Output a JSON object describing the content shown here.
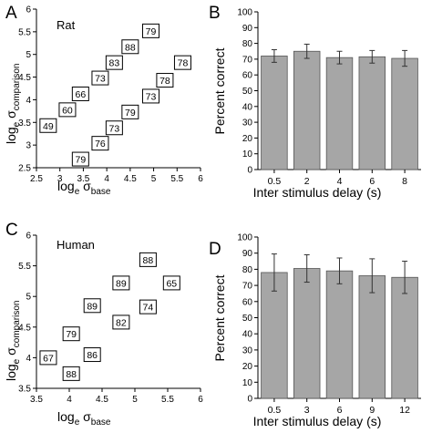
{
  "chart_data": [
    {
      "panel": "A",
      "type": "scatter",
      "inset_label": "Rat",
      "xlabel": "log",
      "xlabel_sub": "e",
      "xlabel_sigma": "σ",
      "xlabel_sigma_sub": "base",
      "ylabel": "log",
      "ylabel_sub": "e",
      "ylabel_sigma": "σ",
      "ylabel_sigma_sub": "comparison",
      "xlim": [
        2.5,
        6
      ],
      "ylim": [
        2.5,
        6
      ],
      "xticks": [
        "2.5",
        "3",
        "3.5",
        "4",
        "4.5",
        "5",
        "5.5",
        "6"
      ],
      "yticks": [
        "2.5",
        "3",
        "3.5",
        "4",
        "4.5",
        "5",
        "5.5",
        "6"
      ],
      "points": [
        {
          "x": 2.75,
          "y": 3.43,
          "label": "49"
        },
        {
          "x": 3.16,
          "y": 3.78,
          "label": "60"
        },
        {
          "x": 3.44,
          "y": 2.69,
          "label": "79"
        },
        {
          "x": 3.44,
          "y": 4.13,
          "label": "66"
        },
        {
          "x": 3.86,
          "y": 3.04,
          "label": "76"
        },
        {
          "x": 3.86,
          "y": 4.48,
          "label": "73"
        },
        {
          "x": 4.16,
          "y": 3.38,
          "label": "73"
        },
        {
          "x": 4.16,
          "y": 4.82,
          "label": "83"
        },
        {
          "x": 4.5,
          "y": 3.73,
          "label": "79"
        },
        {
          "x": 4.5,
          "y": 5.17,
          "label": "88"
        },
        {
          "x": 4.94,
          "y": 4.08,
          "label": "73"
        },
        {
          "x": 4.94,
          "y": 5.52,
          "label": "79"
        },
        {
          "x": 5.24,
          "y": 4.43,
          "label": "78"
        },
        {
          "x": 5.62,
          "y": 4.82,
          "label": "78"
        }
      ]
    },
    {
      "panel": "B",
      "type": "bar",
      "xlabel": "Inter stimulus delay (s)",
      "ylabel": "Percent correct",
      "categories": [
        "0.5",
        "2",
        "4",
        "6",
        "8"
      ],
      "values": [
        72,
        75,
        71,
        71.5,
        70.5
      ],
      "errors": [
        4,
        4.5,
        4,
        4,
        5
      ],
      "ylim": [
        0,
        100
      ],
      "yticks": [
        "0",
        "10",
        "20",
        "30",
        "40",
        "50",
        "60",
        "70",
        "80",
        "90",
        "100"
      ],
      "bar_color": "#a6a6a6"
    },
    {
      "panel": "C",
      "type": "scatter",
      "inset_label": "Human",
      "xlabel": "log",
      "xlabel_sub": "e",
      "xlabel_sigma": "σ",
      "xlabel_sigma_sub": "base",
      "ylabel": "log",
      "ylabel_sub": "e",
      "ylabel_sigma": "σ",
      "ylabel_sigma_sub": "comparison",
      "xlim": [
        3.5,
        6
      ],
      "ylim": [
        3.5,
        6
      ],
      "xticks": [
        "3.5",
        "4",
        "4.5",
        "5",
        "5.5",
        "6"
      ],
      "yticks": [
        "3.5",
        "4",
        "4.5",
        "5",
        "5.5",
        "6"
      ],
      "points": [
        {
          "x": 3.68,
          "y": 4.0,
          "label": "67"
        },
        {
          "x": 4.03,
          "y": 3.74,
          "label": "88"
        },
        {
          "x": 4.03,
          "y": 4.39,
          "label": "79"
        },
        {
          "x": 4.35,
          "y": 4.05,
          "label": "86"
        },
        {
          "x": 4.35,
          "y": 4.85,
          "label": "89"
        },
        {
          "x": 4.79,
          "y": 4.58,
          "label": "82"
        },
        {
          "x": 4.79,
          "y": 5.22,
          "label": "89"
        },
        {
          "x": 5.2,
          "y": 4.83,
          "label": "74"
        },
        {
          "x": 5.2,
          "y": 5.6,
          "label": "88"
        },
        {
          "x": 5.56,
          "y": 5.22,
          "label": "65"
        }
      ]
    },
    {
      "panel": "D",
      "type": "bar",
      "xlabel": "Inter stimulus delay (s)",
      "ylabel": "Percent correct",
      "categories": [
        "0.5",
        "3",
        "6",
        "9",
        "12"
      ],
      "values": [
        78,
        80.5,
        79,
        76,
        75
      ],
      "errors": [
        11.5,
        8.5,
        8,
        10.5,
        10
      ],
      "ylim": [
        0,
        100
      ],
      "yticks": [
        "0",
        "10",
        "20",
        "30",
        "40",
        "50",
        "60",
        "70",
        "80",
        "90",
        "100"
      ],
      "bar_color": "#a6a6a6"
    }
  ]
}
